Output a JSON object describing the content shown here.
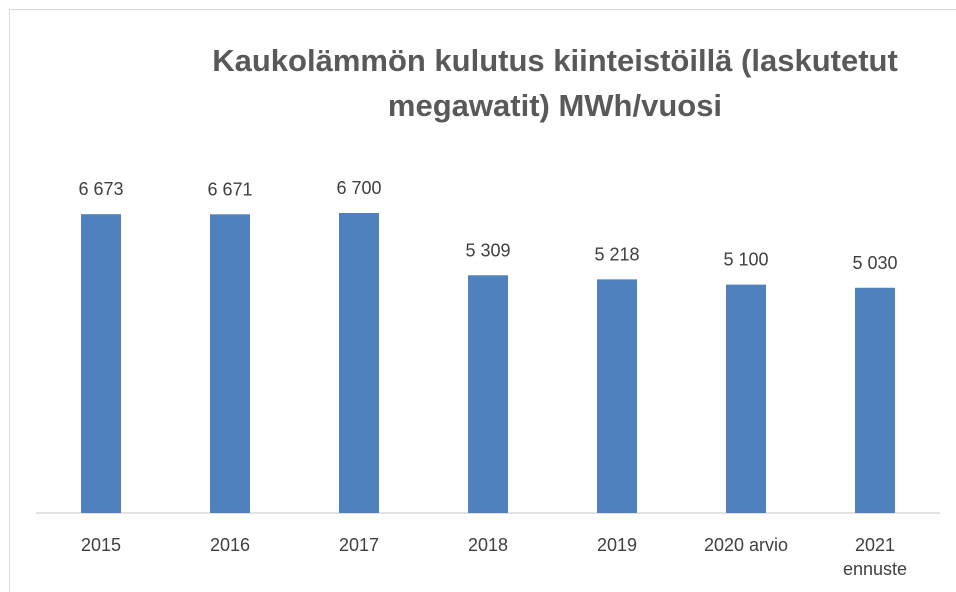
{
  "chart_data": {
    "type": "bar",
    "title": "Kaukolämmön kulutus kiinteistöillä (laskutetut megawatit) MWh/vuosi",
    "categories": [
      "2015",
      "2016",
      "2017",
      "2018",
      "2019",
      "2020 arvio",
      "2021 ennuste"
    ],
    "values": [
      6673,
      6671,
      6700,
      5309,
      5218,
      5100,
      5030
    ],
    "value_labels": [
      "6 673",
      "6 671",
      "6 700",
      "5 309",
      "5 218",
      "5 100",
      "5 030"
    ],
    "color": "#4f81bd",
    "ylim": [
      0,
      7000
    ]
  }
}
